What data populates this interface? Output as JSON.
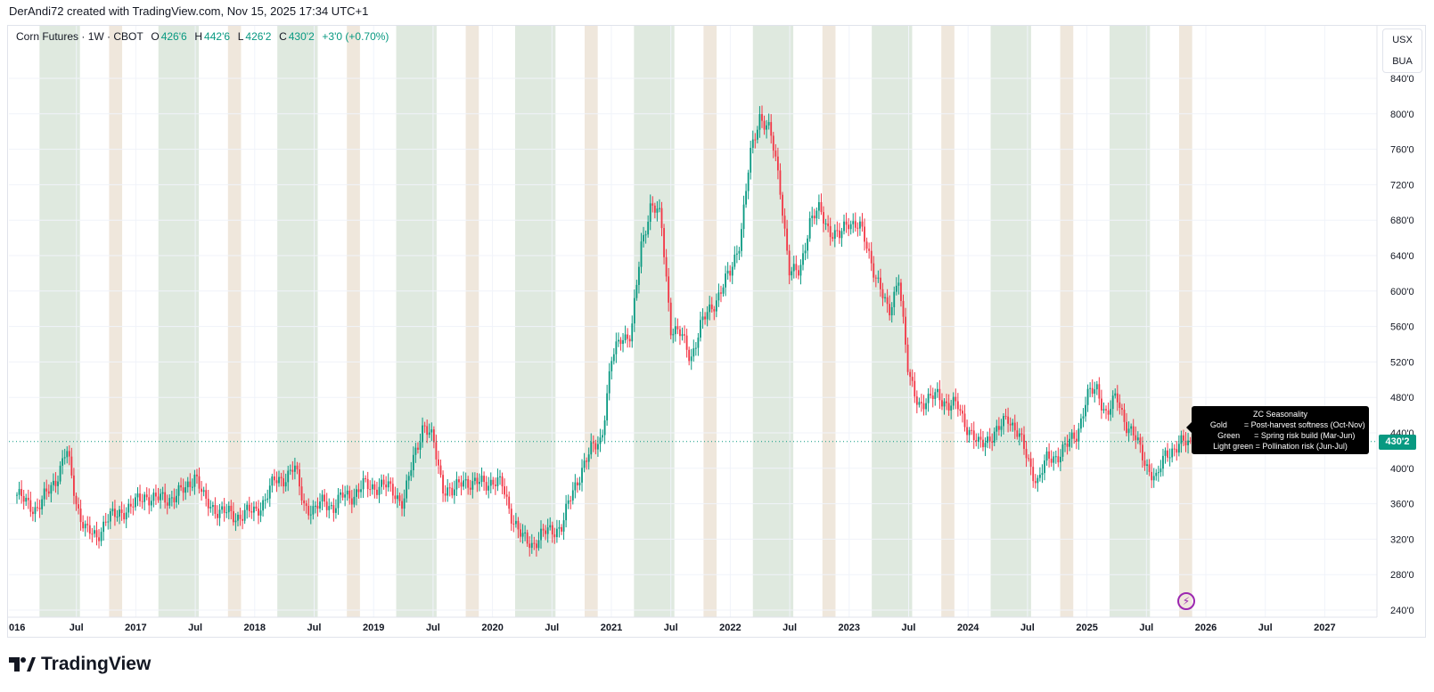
{
  "watermark": "DerAndi72 created with TradingView.com, Nov 15, 2025 17:34 UTC+1",
  "legend": {
    "symbol": "Corn Futures · 1W · CBOT",
    "open_label": "O",
    "open": "426'6",
    "high_label": "H",
    "high": "442'6",
    "low_label": "L",
    "low": "426'2",
    "close_label": "C",
    "close": "430'2",
    "change": "+3'0 (+0.70%)"
  },
  "currency_box": {
    "currency": "USX",
    "unit": "BUA"
  },
  "last_price_label": "430'2",
  "tooltip": {
    "title": "ZC Seasonality",
    "rows": [
      {
        "key": "Gold",
        "value": "= Post-harvest softness (Oct-Nov)"
      },
      {
        "key": "Green",
        "value": "= Spring risk build (Mar-Jun)"
      },
      {
        "key": "Light green",
        "value": "= Pollination risk (Jun-Jul)"
      }
    ]
  },
  "brand": "TradingView",
  "icons": {
    "alert": "lightning-icon",
    "logo": "tradingview-logo"
  },
  "colors": {
    "up": "#089981",
    "down": "#f23645",
    "green_band": "#dfe9df",
    "gold_band": "#efe7dc",
    "tooltip_bg": "#000000"
  },
  "chart_data": {
    "type": "candlestick",
    "interval": "1W",
    "note_series": "approximate monthly closes read from chart, Jan 2016 – Nov 2025",
    "start": "2016-01",
    "monthly_close": [
      370,
      360,
      355,
      370,
      390,
      420,
      360,
      330,
      320,
      345,
      345,
      355,
      360,
      370,
      365,
      365,
      370,
      375,
      395,
      360,
      355,
      350,
      345,
      350,
      350,
      365,
      385,
      390,
      400,
      360,
      350,
      365,
      355,
      370,
      370,
      380,
      380,
      380,
      375,
      360,
      410,
      450,
      430,
      380,
      370,
      390,
      380,
      385,
      385,
      380,
      345,
      320,
      315,
      325,
      330,
      335,
      370,
      400,
      420,
      435,
      520,
      550,
      550,
      650,
      700,
      680,
      560,
      550,
      525,
      560,
      580,
      600,
      620,
      660,
      750,
      800,
      780,
      720,
      620,
      620,
      680,
      690,
      670,
      660,
      680,
      675,
      640,
      610,
      570,
      620,
      500,
      475,
      475,
      485,
      470,
      470,
      445,
      425,
      435,
      440,
      460,
      440,
      410,
      385,
      410,
      415,
      425,
      440,
      480,
      490,
      460,
      480,
      450,
      430,
      405,
      385,
      420,
      422,
      430
    ],
    "last_candle": {
      "open": 426.75,
      "high": 442.75,
      "low": 426.25,
      "close": 430.25
    },
    "y_ticks": [
      "840'0",
      "800'0",
      "760'0",
      "720'0",
      "680'0",
      "640'0",
      "600'0",
      "560'0",
      "520'0",
      "480'0",
      "440'0",
      "400'0",
      "360'0",
      "320'0",
      "280'0",
      "240'0"
    ],
    "ylim": [
      240,
      840
    ],
    "x_ticks": [
      "016",
      "Jul",
      "2017",
      "Jul",
      "2018",
      "Jul",
      "2019",
      "Jul",
      "2020",
      "Jul",
      "2021",
      "Jul",
      "2022",
      "Jul",
      "2023",
      "Jul",
      "2024",
      "Jul",
      "2025",
      "Jul",
      "2026",
      "Jul",
      "2027"
    ],
    "bands": {
      "green": {
        "label": "Green",
        "months": "Mar-Jun"
      },
      "gold": {
        "label": "Gold",
        "months": "Oct-Nov"
      }
    },
    "grid": true,
    "last_price_line": 430.25
  }
}
